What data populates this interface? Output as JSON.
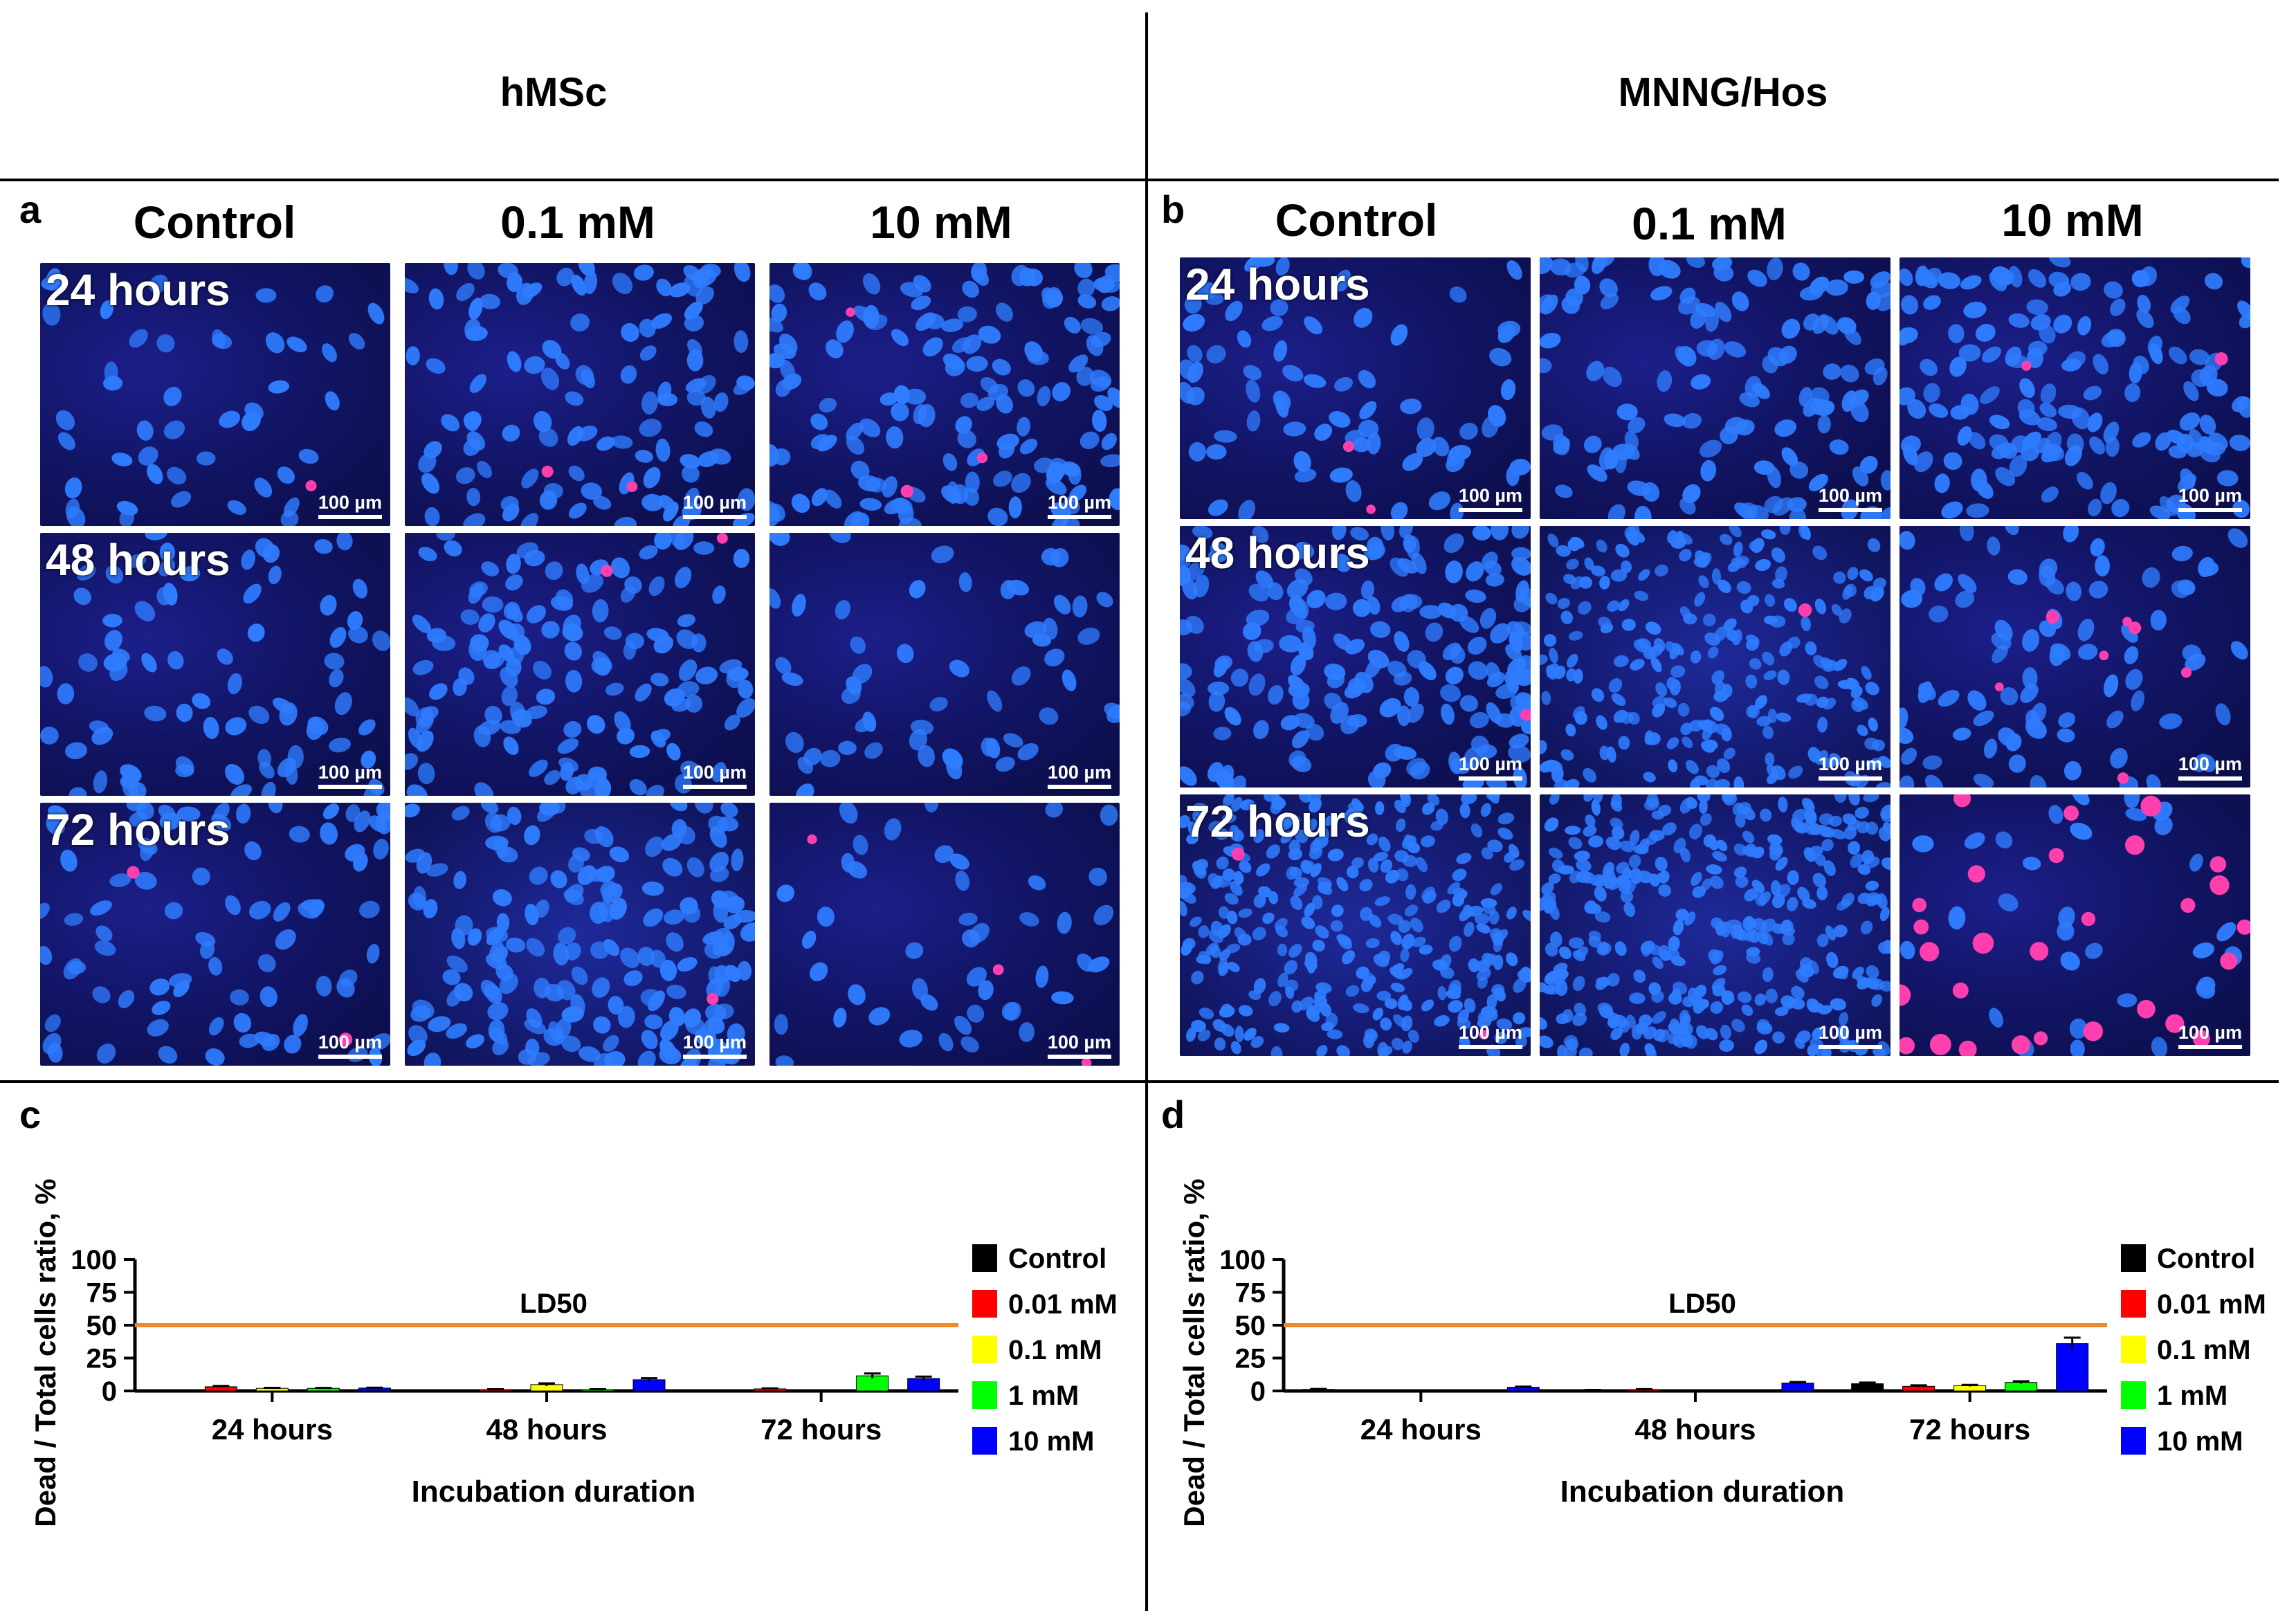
{
  "headers": {
    "left": "hMSc",
    "right": "MNNG/Hos"
  },
  "panel_letters": {
    "a": "a",
    "b": "b",
    "c": "c",
    "d": "d"
  },
  "columns": [
    "Control",
    "0.1 mM",
    "10 mM"
  ],
  "rows": [
    "24 hours",
    "48 hours",
    "72 hours"
  ],
  "scale_bar": "100 µm",
  "colors": {
    "nucleus": "#2f7cff",
    "dead": "#ff3fae",
    "ld50": "#f0892a"
  },
  "chart_data": [
    {
      "type": "bar",
      "panel": "c",
      "title": "",
      "xlabel": "Incubation duration",
      "ylabel": "Dead / Total cells ratio, %",
      "ylim": [
        0,
        100
      ],
      "yticks": [
        "0",
        "25",
        "50",
        "75",
        "100"
      ],
      "categories": [
        "24 hours",
        "48 hours",
        "72 hours"
      ],
      "reference_line": {
        "label": "LD50",
        "value": 50
      },
      "series": [
        {
          "name": "Control",
          "color": "#000000",
          "values": [
            0,
            0,
            0.3
          ],
          "errors": [
            0,
            0,
            0
          ]
        },
        {
          "name": "0.01 mM",
          "color": "#ff0000",
          "values": [
            3.2,
            1.0,
            1.6
          ],
          "errors": [
            0.6,
            0.3,
            0.4
          ]
        },
        {
          "name": "0.1 mM",
          "color": "#ffff00",
          "values": [
            2.0,
            4.8,
            0.2
          ],
          "errors": [
            0.4,
            1.0,
            0.1
          ]
        },
        {
          "name": "1 mM",
          "color": "#00ff00",
          "values": [
            2.0,
            1.0,
            11.5
          ],
          "errors": [
            0.3,
            0.3,
            1.8
          ]
        },
        {
          "name": "10 mM",
          "color": "#0000ff",
          "values": [
            2.2,
            8.5,
            9.5
          ],
          "errors": [
            0.3,
            1.2,
            1.4
          ]
        }
      ],
      "legend_position": "right"
    },
    {
      "type": "bar",
      "panel": "d",
      "title": "",
      "xlabel": "Incubation duration",
      "ylabel": "Dead / Total cells ratio, %",
      "ylim": [
        0,
        100
      ],
      "yticks": [
        "0",
        "25",
        "50",
        "75",
        "100"
      ],
      "categories": [
        "24 hours",
        "48 hours",
        "72 hours"
      ],
      "reference_line": {
        "label": "LD50",
        "value": 50
      },
      "series": [
        {
          "name": "Control",
          "color": "#000000",
          "values": [
            1.2,
            0.6,
            5.5
          ],
          "errors": [
            0.3,
            0.2,
            0.9
          ]
        },
        {
          "name": "0.01 mM",
          "color": "#ff0000",
          "values": [
            0.2,
            0.8,
            3.5
          ],
          "errors": [
            0.1,
            0.6,
            0.8
          ]
        },
        {
          "name": "0.1 mM",
          "color": "#ffff00",
          "values": [
            0.2,
            0.3,
            4.0
          ],
          "errors": [
            0.1,
            0.1,
            0.6
          ]
        },
        {
          "name": "1 mM",
          "color": "#00ff00",
          "values": [
            0.3,
            0.2,
            6.5
          ],
          "errors": [
            0.1,
            0.1,
            0.9
          ]
        },
        {
          "name": "10 mM",
          "color": "#0000ff",
          "values": [
            2.8,
            6.0,
            36.0
          ],
          "errors": [
            0.5,
            0.8,
            4.5
          ]
        }
      ],
      "legend_position": "right"
    }
  ]
}
